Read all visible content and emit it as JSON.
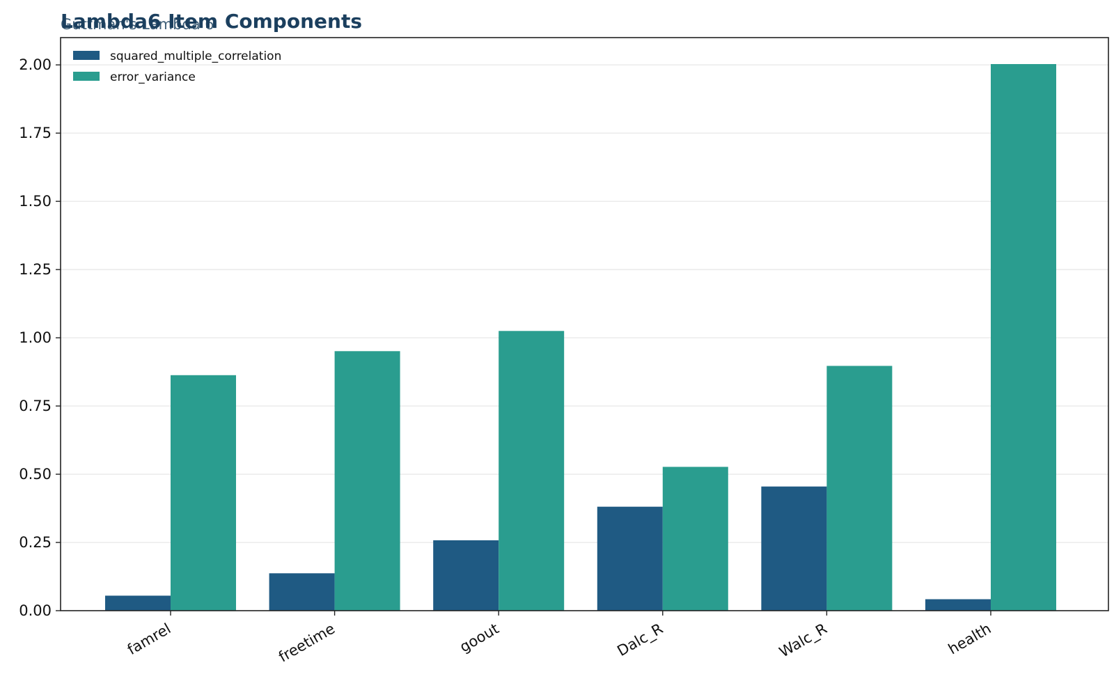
{
  "chart_data": {
    "type": "bar",
    "title": "Lambda6 Item Components",
    "subtitle": "Guttman's Lambda 6",
    "xlabel": "",
    "ylabel": "",
    "categories": [
      "famrel",
      "freetime",
      "goout",
      "Dalc_R",
      "Walc_R",
      "health"
    ],
    "series": [
      {
        "name": "squared_multiple_correlation",
        "color": "#1f5a83",
        "values": [
          0.055,
          0.137,
          0.258,
          0.381,
          0.455,
          0.042
        ]
      },
      {
        "name": "error_variance",
        "color": "#2a9d8f",
        "values": [
          0.863,
          0.951,
          1.025,
          0.527,
          0.897,
          2.003
        ]
      }
    ],
    "ylim": [
      0,
      2.1
    ],
    "yticks": [
      "0.00",
      "0.25",
      "0.50",
      "0.75",
      "1.00",
      "1.25",
      "1.50",
      "1.75",
      "2.00"
    ],
    "grid": "horizontal",
    "legend": "top-left"
  }
}
